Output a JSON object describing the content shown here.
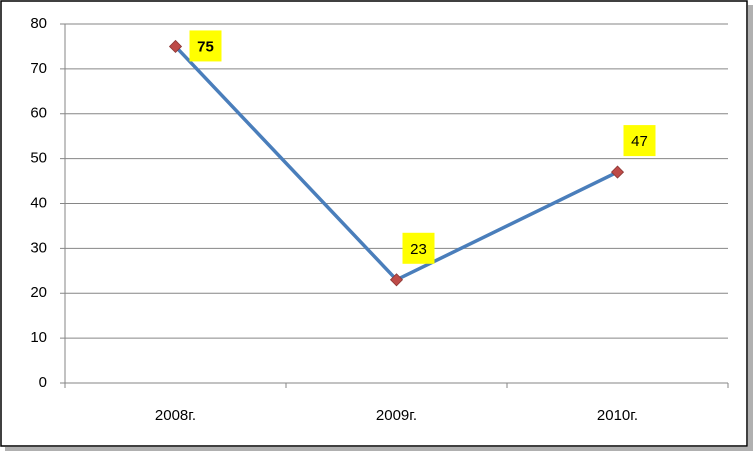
{
  "chart_data": {
    "type": "line",
    "categories": [
      "2008г.",
      "2009г.",
      "2010г."
    ],
    "series": [
      {
        "values": [
          75,
          23,
          47
        ],
        "color": "#4a7ebb",
        "marker_color": "#be4b48"
      }
    ],
    "ylim": [
      0,
      80
    ],
    "yticks": [
      0,
      10,
      20,
      30,
      40,
      50,
      60,
      70,
      80
    ],
    "grid": true,
    "label_background": "#ffff00"
  }
}
